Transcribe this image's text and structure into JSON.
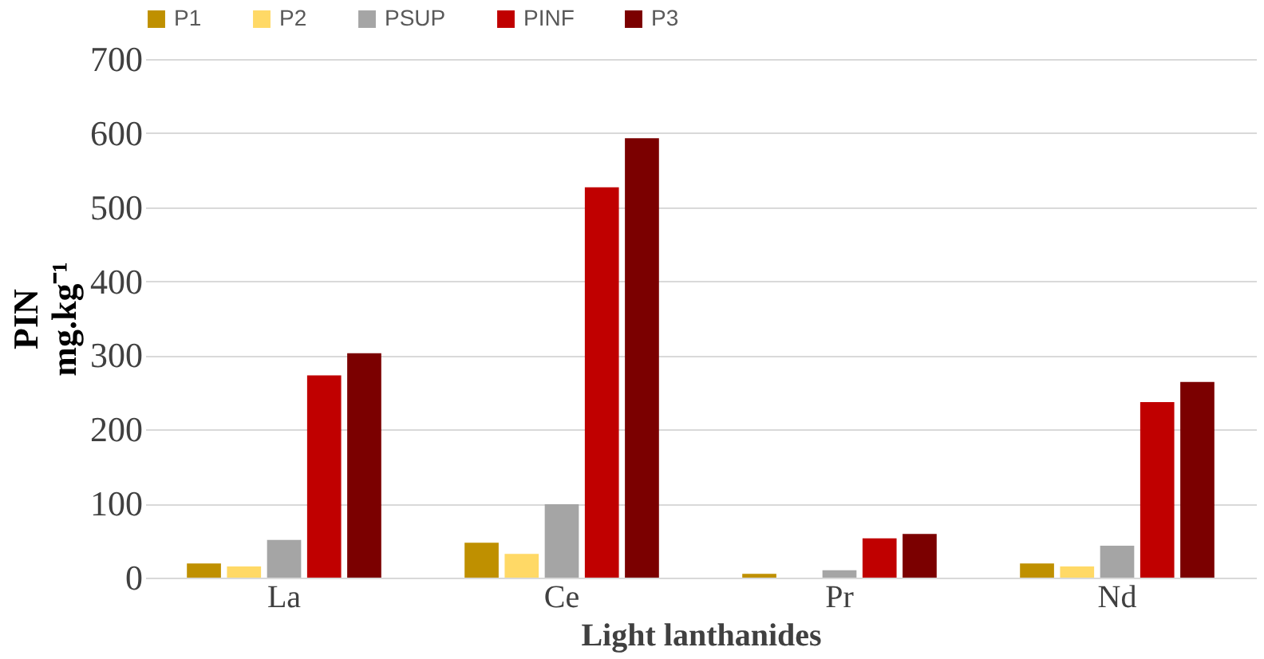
{
  "chart_data": {
    "type": "bar",
    "xlabel": "Light lanthanides",
    "ylabel": "PIN\nmg.kg⁻¹",
    "categories": [
      "La",
      "Ce",
      "Pr",
      "Nd"
    ],
    "series": [
      {
        "name": "P1",
        "color": "#bf9000",
        "values": [
          19,
          47,
          5,
          19
        ]
      },
      {
        "name": "P2",
        "color": "#ffd966",
        "values": [
          15,
          32,
          0,
          15
        ]
      },
      {
        "name": "PSUP",
        "color": "#a5a5a5",
        "values": [
          51,
          99,
          10,
          43
        ]
      },
      {
        "name": "PINF",
        "color": "#c00000",
        "values": [
          273,
          527,
          53,
          237
        ]
      },
      {
        "name": "P3",
        "color": "#7b0000",
        "values": [
          303,
          593,
          59,
          264
        ]
      }
    ],
    "ylim": [
      0,
      700
    ],
    "yticks": [
      0,
      100,
      200,
      300,
      400,
      500,
      600,
      700
    ],
    "grid": "y",
    "legend": "top"
  }
}
